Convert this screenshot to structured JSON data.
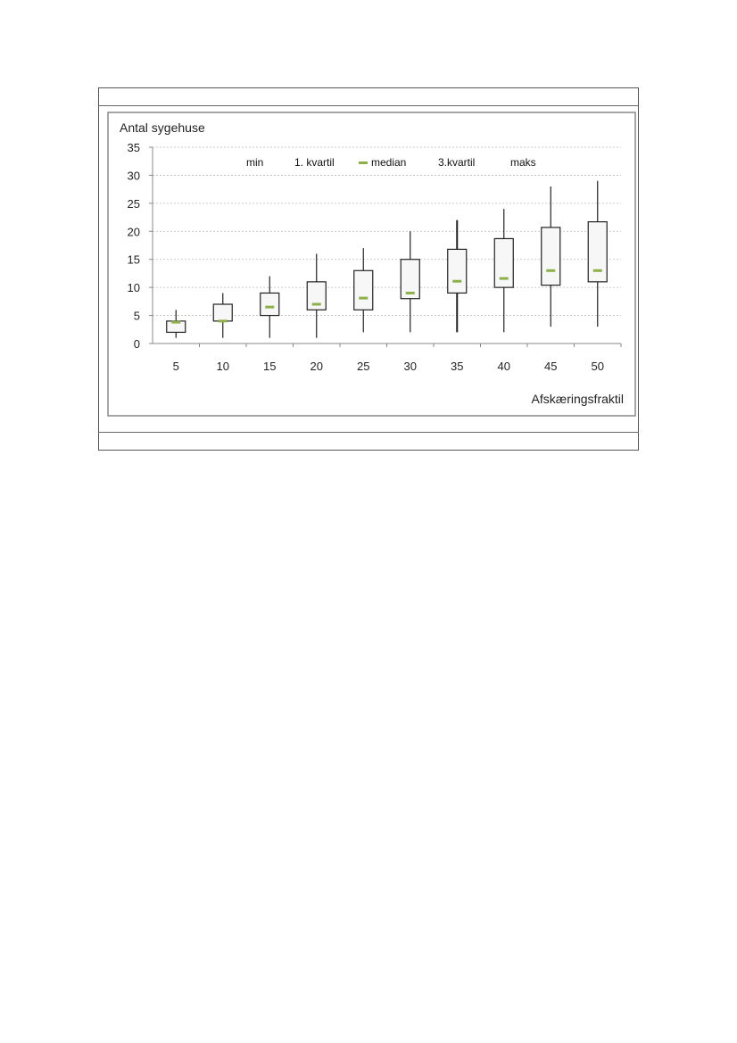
{
  "chart_data": {
    "type": "boxplot",
    "categories": [
      "5",
      "10",
      "15",
      "20",
      "25",
      "30",
      "35",
      "40",
      "45",
      "50"
    ],
    "boxes": [
      {
        "min": 1,
        "q1": 2,
        "median": 3.8,
        "q3": 4,
        "max": 6
      },
      {
        "min": 1,
        "q1": 4,
        "median": 4,
        "q3": 7,
        "max": 9
      },
      {
        "min": 1,
        "q1": 5,
        "median": 6.5,
        "q3": 9,
        "max": 12
      },
      {
        "min": 1,
        "q1": 6,
        "median": 7,
        "q3": 11,
        "max": 16
      },
      {
        "min": 2,
        "q1": 6,
        "median": 8.1,
        "q3": 13,
        "max": 17
      },
      {
        "min": 2,
        "q1": 8,
        "median": 9,
        "q3": 15,
        "max": 20
      },
      {
        "min": 2,
        "q1": 9,
        "median": 11.1,
        "q3": 16.8,
        "max": 22
      },
      {
        "min": 2,
        "q1": 10,
        "median": 11.6,
        "q3": 18.7,
        "max": 24
      },
      {
        "min": 3,
        "q1": 10.4,
        "median": 13,
        "q3": 20.7,
        "max": 28
      },
      {
        "min": 3,
        "q1": 11,
        "median": 13,
        "q3": 21.7,
        "max": 29
      }
    ],
    "ylabel": "Antal sygehuse",
    "xlabel": "Afskæringsfraktil",
    "ylim": [
      0,
      35
    ],
    "yticks": [
      0,
      5,
      10,
      15,
      20,
      25,
      30,
      35
    ],
    "grid": true,
    "legend": {
      "placement": "top",
      "items": [
        "min",
        "1. kvartil",
        "median",
        "3.kvartil",
        "maks"
      ]
    },
    "colors": {
      "median": "#8db04a",
      "box_fill": "#f7f7f7",
      "box_stroke": "#222222",
      "grid": "#bbbbbb",
      "frame": "#888888"
    }
  }
}
